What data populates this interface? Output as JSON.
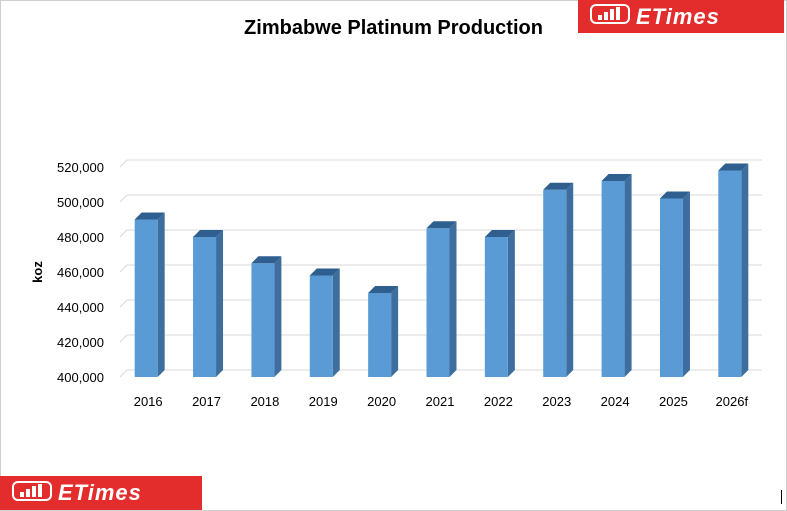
{
  "brand": {
    "name": "ETimes",
    "icon": "bar-chart-logo-icon",
    "color": "#e32c2c"
  },
  "chart_data": {
    "type": "bar",
    "title": "Zimbabwe Platinum Production",
    "xlabel": "",
    "ylabel": "koz",
    "categories": [
      "2016",
      "2017",
      "2018",
      "2019",
      "2020",
      "2021",
      "2022",
      "2023",
      "2024",
      "2025",
      "2026f"
    ],
    "values": [
      490000,
      480000,
      465000,
      458000,
      448000,
      485000,
      480000,
      507000,
      512000,
      502000,
      518000
    ],
    "ylim": [
      400000,
      520000
    ],
    "yticks": [
      400000,
      420000,
      440000,
      460000,
      480000,
      500000,
      520000
    ],
    "ytick_labels": [
      "400,000",
      "420,000",
      "440,000",
      "460,000",
      "480,000",
      "500,000",
      "520,000"
    ],
    "grid": true,
    "bar_color": "#5b9bd5",
    "bar_side_color": "#3d6e9e",
    "bar_top_color": "#2f5f8f"
  }
}
